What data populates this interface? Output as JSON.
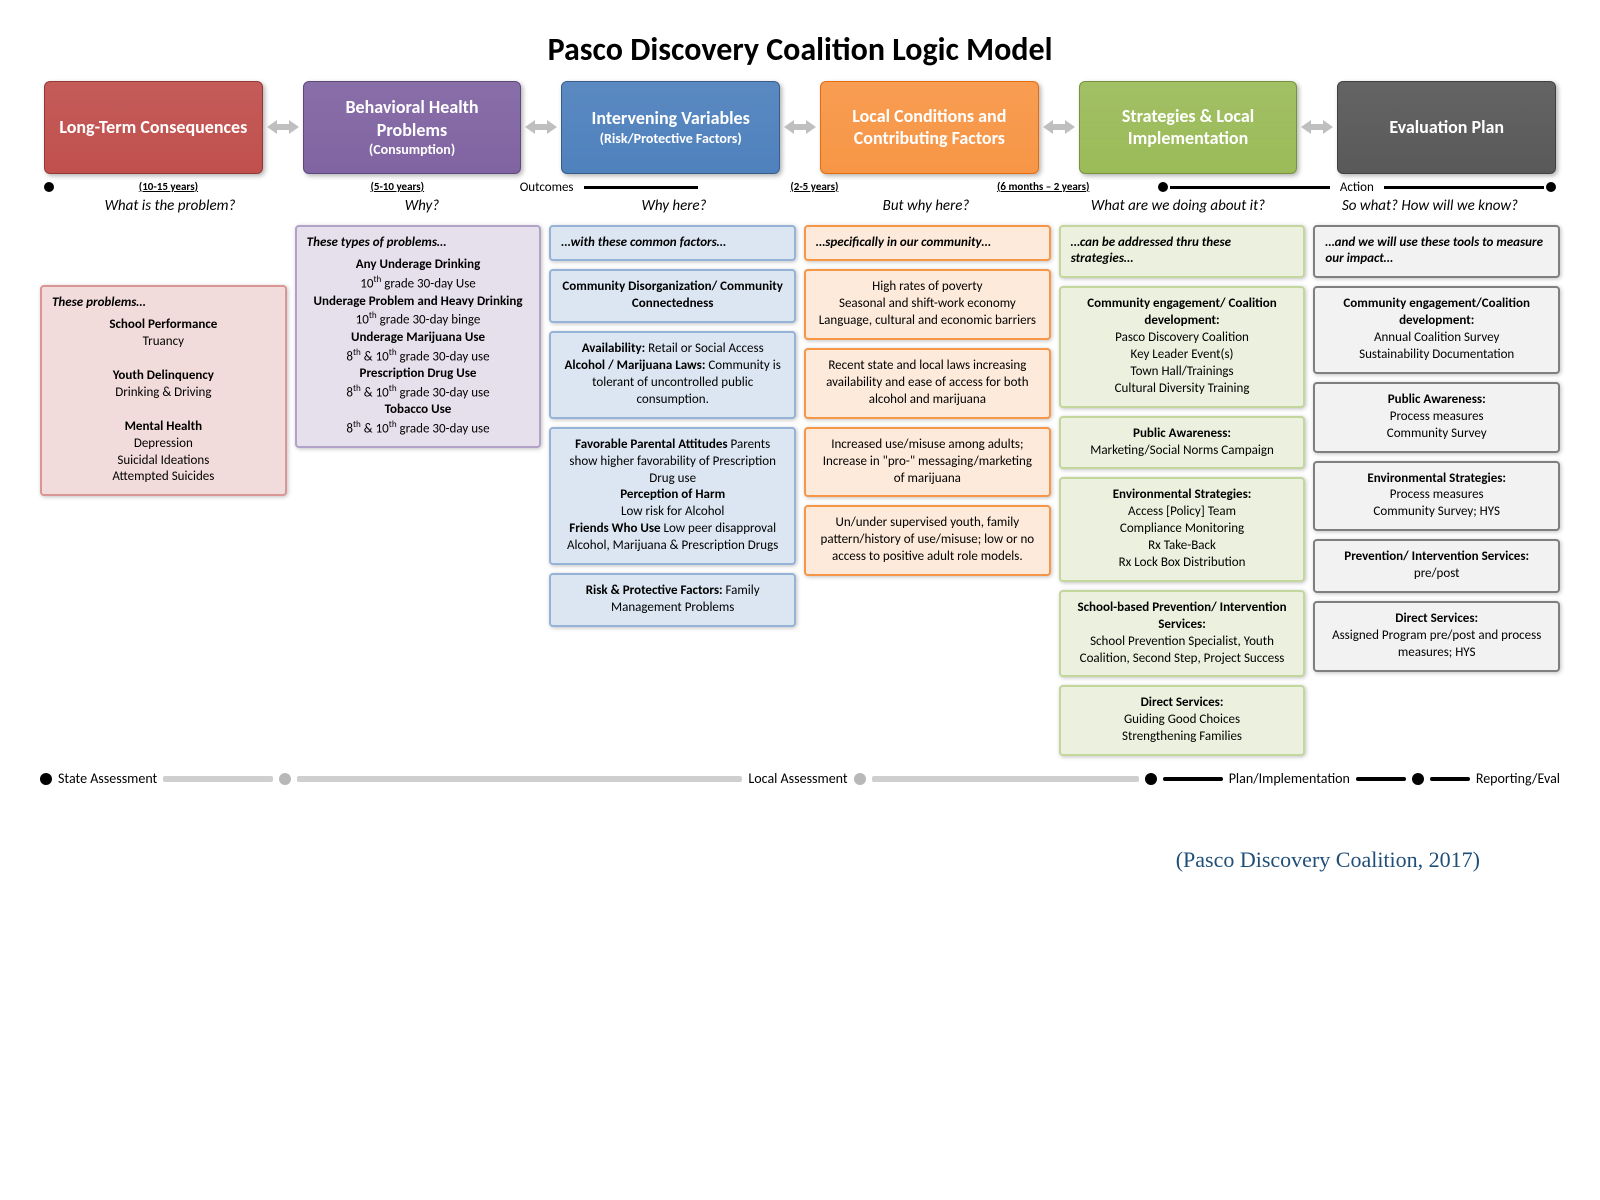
{
  "title": "Pasco Discovery Coalition Logic Model",
  "citation": "(Pasco Discovery Coalition, 2017)",
  "colors": {
    "red_bg": "#c0504d",
    "red_border": "#953735",
    "purple_bg": "#8064a2",
    "purple_border": "#5f497a",
    "blue_bg": "#4f81bd",
    "blue_border": "#385d8a",
    "orange_bg": "#f79646",
    "orange_border": "#e46c0a",
    "green_bg": "#9bbb59",
    "green_border": "#76923c",
    "gray_bg": "#595959",
    "gray_border": "#404040",
    "red_light": "#f2dcdb",
    "red_lborder": "#d99694",
    "purple_light": "#e6e0ec",
    "purple_lborder": "#b3a2c7",
    "blue_light": "#dce6f2",
    "blue_lborder": "#95b3d7",
    "orange_light": "#fdeada",
    "orange_lborder": "#f79646",
    "green_light": "#ebf1de",
    "green_lborder": "#c3d69b",
    "gray_light": "#f2f2f2",
    "gray_lborder": "#7f7f7f"
  },
  "headers": [
    {
      "title": "Long-Term Consequences",
      "sub": ""
    },
    {
      "title": "Behavioral Health Problems",
      "sub": "(Consumption)"
    },
    {
      "title": "Intervening Variables",
      "sub": "(Risk/Protective Factors)"
    },
    {
      "title": "Local Conditions and Contributing Factors",
      "sub": ""
    },
    {
      "title": "Strategies & Local Implementation",
      "sub": ""
    },
    {
      "title": "Evaluation Plan",
      "sub": ""
    }
  ],
  "timeline": {
    "years": [
      "(10-15 years)",
      "(5-10 years)",
      "",
      "(2-5 years)",
      "(6 months – 2 years)",
      ""
    ],
    "outcomes_label": "Outcomes",
    "action_label": "Action"
  },
  "questions": [
    "What is the problem?",
    "Why?",
    "Why here?",
    "But why here?",
    "What are we doing about it?",
    "So what? How will we know?"
  ],
  "col1": {
    "lead": "These problems…",
    "html": "<b>School Performance</b><br>Truancy<br><br><b>Youth Delinquency</b><br>Drinking & Driving<br><br><b>Mental Health</b><br>Depression<br>Suicidal Ideations<br>Attempted Suicides"
  },
  "col2": {
    "lead": "These types of problems…",
    "html": "<b>Any Underage Drinking</b><br>10<sup>th</sup> grade 30-day Use<br><b>Underage Problem and Heavy Drinking</b><br>10<sup>th</sup> grade 30-day binge<br><b>Underage Marijuana Use</b><br>8<sup>th</sup> & 10<sup>th</sup> grade 30-day use<br><b>Prescription Drug Use</b><br>8<sup>th</sup> & 10<sup>th</sup> grade 30-day use<br><b>Tobacco Use</b><br>8<sup>th</sup> & 10<sup>th</sup> grade 30-day use"
  },
  "col3": {
    "lead": "…with these common factors…",
    "boxes": [
      "<b>Community Disorganization/ Community Connectedness</b>",
      "<b>Availability:</b> Retail or Social Access<br><b>Alcohol / Marijuana Laws:</b> Community is tolerant of uncontrolled public consumption.",
      "<b>Favorable Parental Attitudes</b> Parents show higher favorability of Prescription Drug use<br><b>Perception of Harm</b><br>Low risk for Alcohol<br><b>Friends Who Use</b> Low peer disapproval Alcohol, Marijuana & Prescription Drugs",
      "<b>Risk & Protective Factors:</b> Family Management Problems"
    ]
  },
  "col4": {
    "lead": "…specifically in our community…",
    "boxes": [
      "High rates of poverty<br>Seasonal and shift-work economy<br>Language, cultural and economic barriers",
      "Recent state and local laws increasing availability and ease of access for both alcohol and marijuana",
      "Increased use/misuse among adults; Increase in \"pro-\" messaging/marketing of marijuana",
      "Un/under supervised youth, family pattern/history of use/misuse; low or no access to positive adult role models."
    ]
  },
  "col5": {
    "lead": "…can be addressed thru these strategies…",
    "boxes": [
      "<b>Community engagement/ Coalition development:</b><br>Pasco Discovery Coalition<br>Key Leader Event(s)<br>Town Hall/Trainings<br>Cultural Diversity Training",
      "<b>Public Awareness:</b><br>Marketing/Social Norms Campaign",
      "<b>Environmental Strategies:</b><br>Access [Policy] Team<br>Compliance Monitoring<br>Rx Take-Back<br>Rx Lock Box Distribution",
      "<b>School-based Prevention/ Intervention Services:</b><br>School Prevention Specialist, Youth Coalition, Second Step, Project Success",
      "<b>Direct Services:</b><br>Guiding Good Choices<br>Strengthening Families"
    ]
  },
  "col6": {
    "lead": "…and we will use these tools to measure our impact…",
    "boxes": [
      "<b>Community engagement/Coalition development:</b><br>Annual Coalition Survey<br>Sustainability Documentation",
      "<b>Public Awareness:</b><br>Process measures<br>Community Survey",
      "<b>Environmental Strategies:</b><br>Process measures<br>Community Survey; HYS",
      "<b>Prevention/ Intervention Services:</b><br>pre/post",
      "<b>Direct Services:</b><br>Assigned Program pre/post and process measures; HYS"
    ]
  },
  "bottom": {
    "state": "State Assessment",
    "local": "Local Assessment",
    "plan": "Plan/Implementation",
    "report": "Reporting/Eval"
  }
}
